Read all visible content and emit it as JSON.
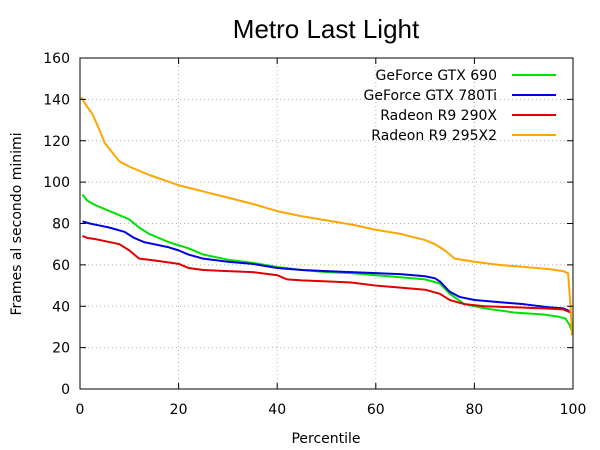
{
  "chart_data": {
    "type": "line",
    "title": "Metro Last Light",
    "xlabel": "Percentile",
    "ylabel": "Frames al secondo minimi",
    "xlim": [
      0,
      100
    ],
    "ylim": [
      0,
      160
    ],
    "xticks": [
      0,
      20,
      40,
      60,
      80,
      100
    ],
    "yticks": [
      0,
      20,
      40,
      60,
      80,
      100,
      120,
      140,
      160
    ],
    "grid": true,
    "legend_position": "top-right",
    "series": [
      {
        "name": "GeForce GTX 690",
        "color": "#00e000",
        "points": [
          [
            0.5,
            94
          ],
          [
            1.5,
            91
          ],
          [
            3,
            89
          ],
          [
            5,
            87
          ],
          [
            8,
            84
          ],
          [
            10,
            82
          ],
          [
            12,
            78
          ],
          [
            14,
            75
          ],
          [
            18,
            71
          ],
          [
            22,
            68
          ],
          [
            25,
            65
          ],
          [
            30,
            62.5
          ],
          [
            35,
            61
          ],
          [
            40,
            59
          ],
          [
            45,
            57.5
          ],
          [
            50,
            56.5
          ],
          [
            55,
            56
          ],
          [
            60,
            55
          ],
          [
            65,
            54
          ],
          [
            70,
            53
          ],
          [
            73,
            51
          ],
          [
            75,
            46
          ],
          [
            78,
            41
          ],
          [
            82,
            39
          ],
          [
            88,
            37
          ],
          [
            94,
            36
          ],
          [
            97,
            35
          ],
          [
            98.5,
            34
          ],
          [
            99.3,
            31
          ],
          [
            99.8,
            28
          ]
        ]
      },
      {
        "name": "GeForce GTX 780Ti",
        "color": "#0000e0",
        "points": [
          [
            0.5,
            81
          ],
          [
            2,
            80
          ],
          [
            4,
            79
          ],
          [
            6,
            78
          ],
          [
            9,
            76
          ],
          [
            11,
            73
          ],
          [
            13,
            71
          ],
          [
            15,
            70
          ],
          [
            18,
            68.5
          ],
          [
            20,
            67
          ],
          [
            22,
            65
          ],
          [
            25,
            63
          ],
          [
            30,
            61.5
          ],
          [
            35,
            60.5
          ],
          [
            40,
            58.5
          ],
          [
            45,
            57.5
          ],
          [
            50,
            57
          ],
          [
            55,
            56.5
          ],
          [
            60,
            56
          ],
          [
            65,
            55.5
          ],
          [
            70,
            54.5
          ],
          [
            72,
            53.5
          ],
          [
            73,
            52
          ],
          [
            75,
            47
          ],
          [
            77,
            44.5
          ],
          [
            80,
            43
          ],
          [
            85,
            42
          ],
          [
            90,
            41
          ],
          [
            95,
            39.5
          ],
          [
            98,
            39
          ],
          [
            99,
            38
          ],
          [
            99.5,
            37
          ]
        ]
      },
      {
        "name": "Radeon R9 290X",
        "color": "#e00000",
        "points": [
          [
            0.5,
            74
          ],
          [
            1.5,
            73
          ],
          [
            3,
            72.5
          ],
          [
            5,
            71.5
          ],
          [
            8,
            70
          ],
          [
            10,
            67
          ],
          [
            12,
            63
          ],
          [
            14,
            62.5
          ],
          [
            17,
            61.5
          ],
          [
            20,
            60.5
          ],
          [
            22,
            58.5
          ],
          [
            25,
            57.5
          ],
          [
            30,
            57
          ],
          [
            35,
            56.5
          ],
          [
            40,
            55
          ],
          [
            42,
            53
          ],
          [
            45,
            52.5
          ],
          [
            50,
            52
          ],
          [
            55,
            51.5
          ],
          [
            60,
            50
          ],
          [
            65,
            49
          ],
          [
            70,
            48
          ],
          [
            73,
            46
          ],
          [
            75,
            43
          ],
          [
            78,
            41
          ],
          [
            82,
            40
          ],
          [
            88,
            39.5
          ],
          [
            94,
            39
          ],
          [
            98,
            38.5
          ],
          [
            99.5,
            37
          ]
        ]
      },
      {
        "name": "Radeon R9 295X2",
        "color": "#ffa500",
        "points": [
          [
            0.3,
            141
          ],
          [
            1,
            138
          ],
          [
            2.5,
            133
          ],
          [
            4,
            125
          ],
          [
            5,
            119
          ],
          [
            7,
            113
          ],
          [
            8,
            110
          ],
          [
            10,
            107.5
          ],
          [
            12,
            105.5
          ],
          [
            14,
            103.5
          ],
          [
            17,
            101
          ],
          [
            20,
            98.5
          ],
          [
            25,
            95.5
          ],
          [
            30,
            92.5
          ],
          [
            35,
            89.5
          ],
          [
            40,
            86
          ],
          [
            45,
            83.5
          ],
          [
            50,
            81.5
          ],
          [
            55,
            79.5
          ],
          [
            60,
            77
          ],
          [
            65,
            75
          ],
          [
            70,
            72
          ],
          [
            72,
            70
          ],
          [
            74,
            67
          ],
          [
            75,
            65
          ],
          [
            76,
            63
          ],
          [
            80,
            61.5
          ],
          [
            85,
            60
          ],
          [
            90,
            59
          ],
          [
            95,
            58
          ],
          [
            98,
            57
          ],
          [
            99,
            56
          ],
          [
            99.5,
            40
          ],
          [
            99.8,
            26
          ]
        ]
      }
    ]
  }
}
